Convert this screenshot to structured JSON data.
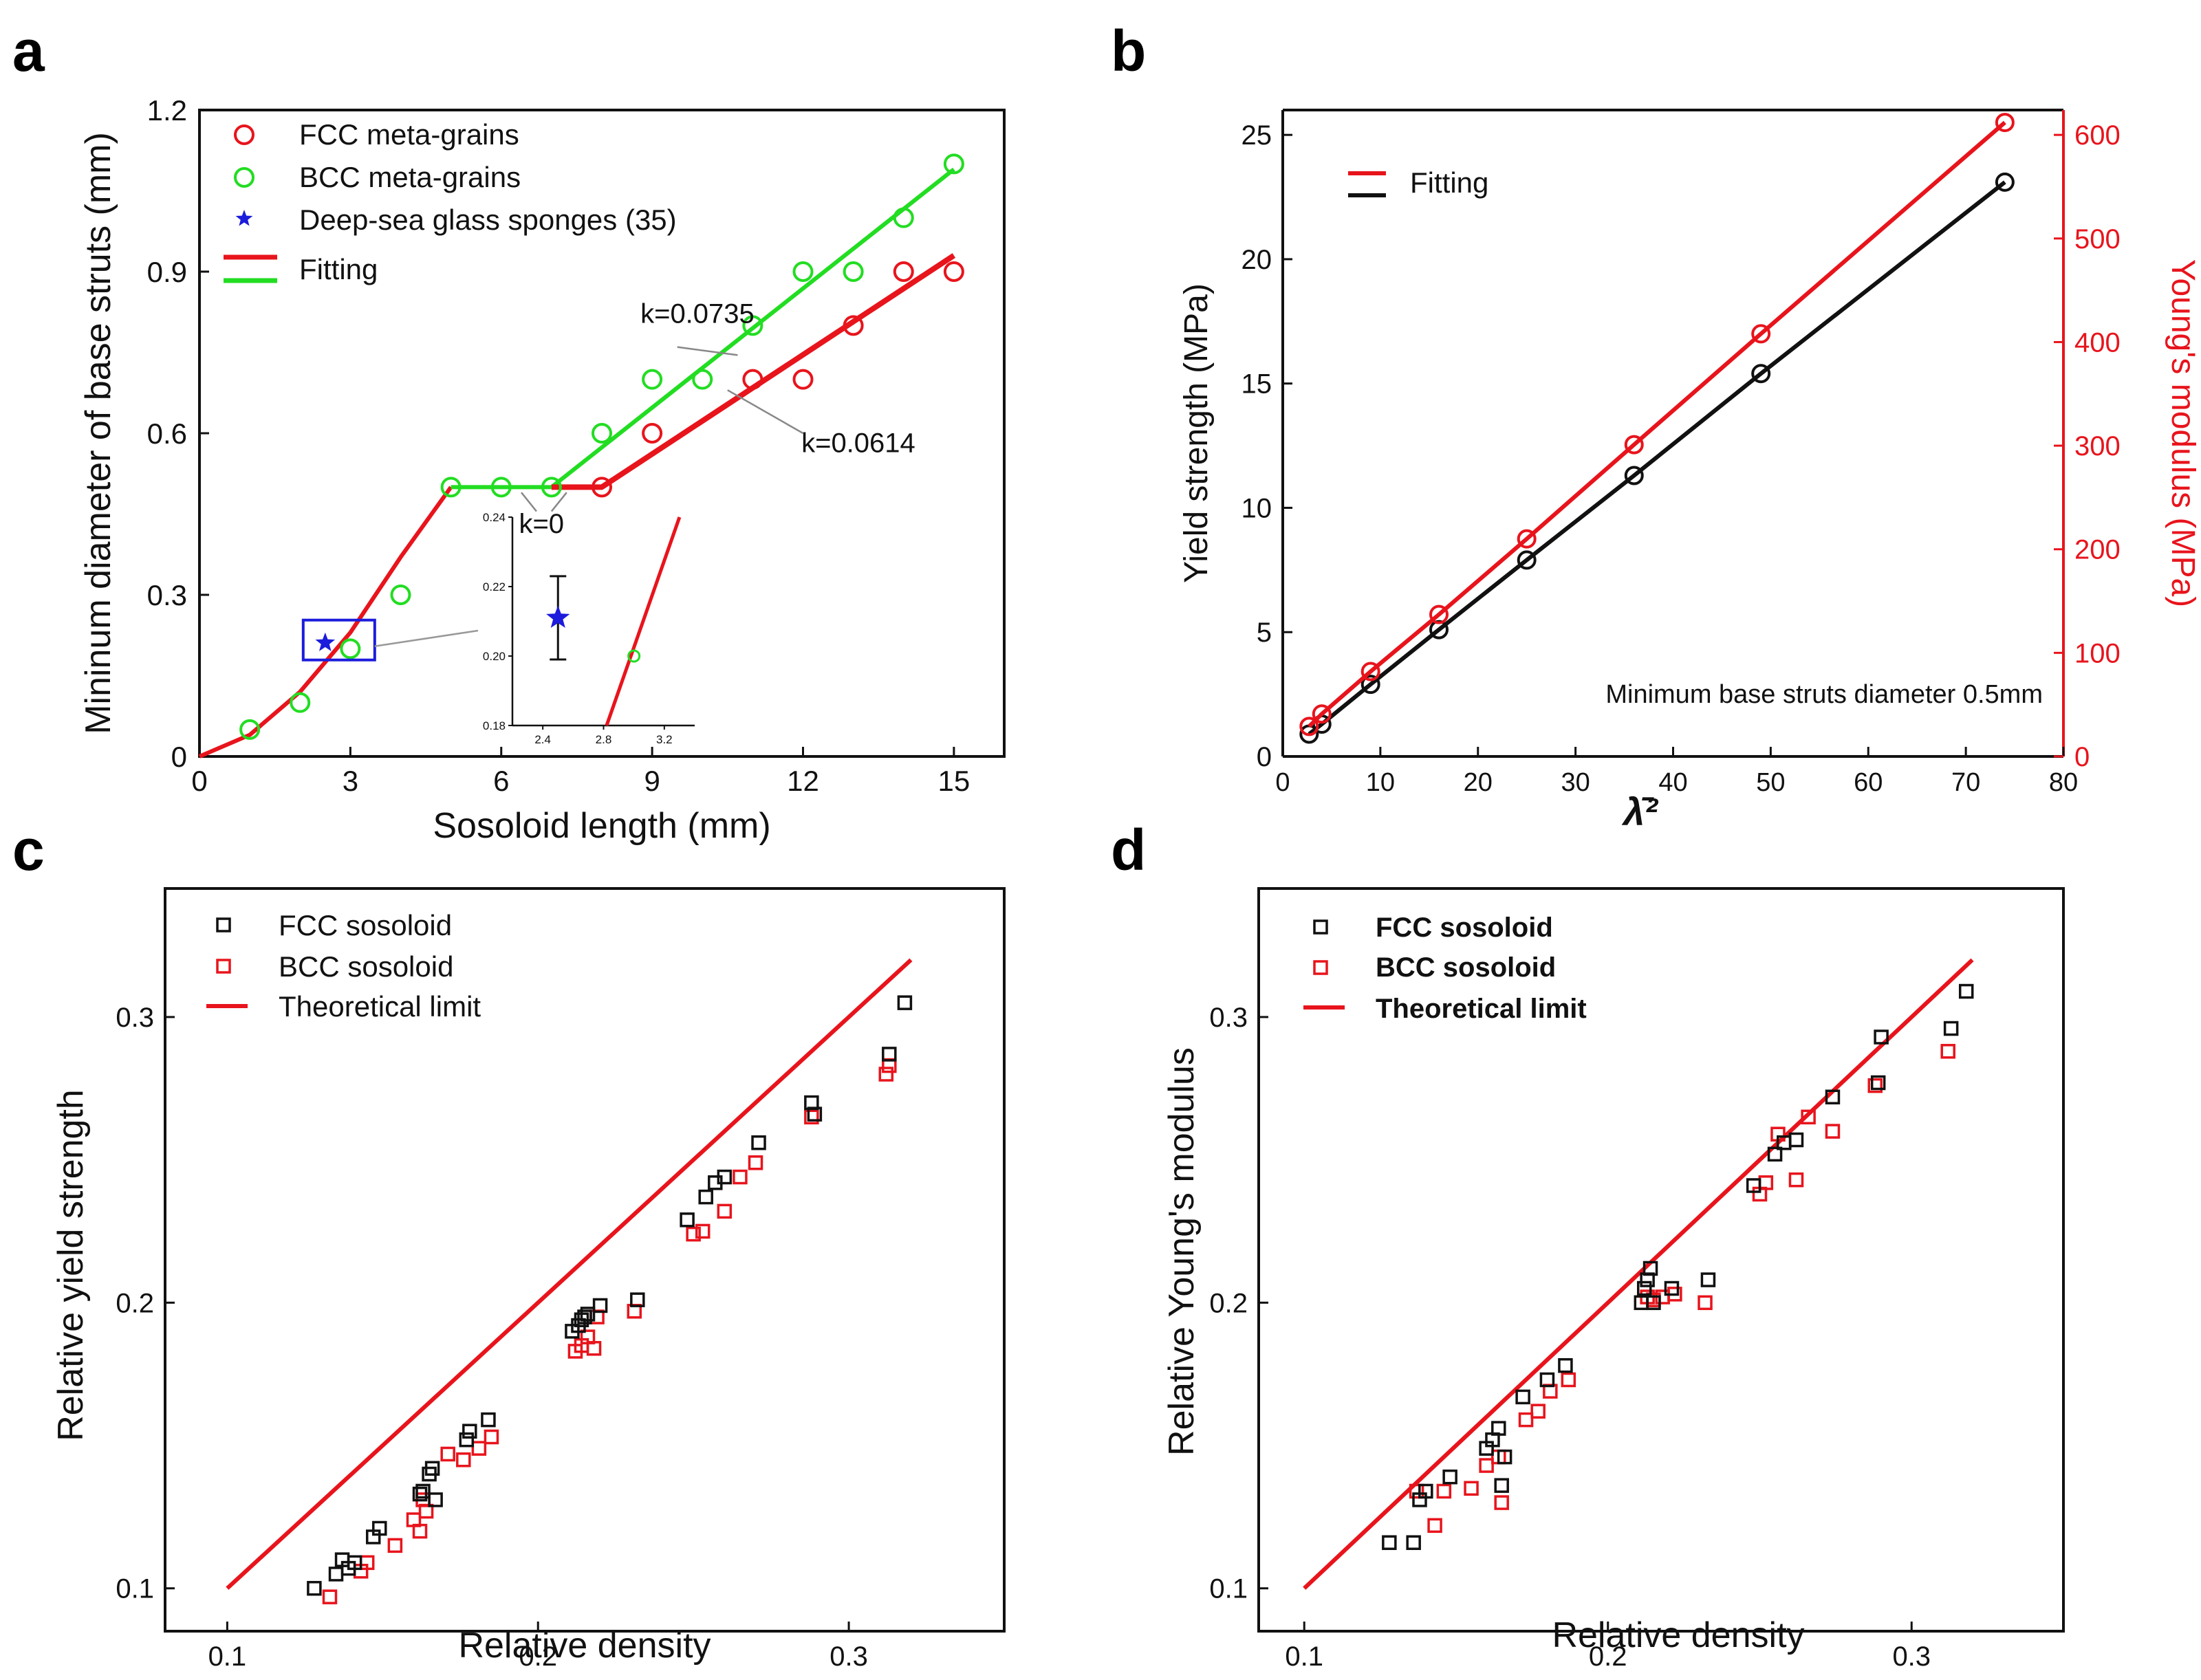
{
  "colors": {
    "fcc": "#e8141c",
    "bcc": "#22dd22",
    "blue": "#1c1cdc",
    "black": "#111111",
    "red": "#e8141c"
  },
  "chart_data": [
    {
      "panel": "a",
      "type": "scatter",
      "xlabel": "Sosoloid length (mm)",
      "ylabel": "Mininum diameter of base struts (mm)",
      "xlim": [
        0,
        16
      ],
      "ylim": [
        0,
        1.2
      ],
      "xticks": [
        0,
        3,
        6,
        9,
        12,
        15
      ],
      "yticks": [
        0,
        0.3,
        0.6,
        0.9,
        1.2
      ],
      "yticklabels": [
        "0",
        "0.3",
        "0.6",
        "0.9",
        "1.2"
      ],
      "legend": [
        "FCC meta-grains",
        "BCC meta-grains",
        "Deep-sea glass sponges (35)",
        "Fitting"
      ],
      "series": [
        {
          "name": "FCC meta-grains",
          "x": [
            8,
            9,
            11,
            12,
            13,
            14,
            15
          ],
          "y": [
            0.5,
            0.6,
            0.7,
            0.7,
            0.8,
            0.9,
            0.9
          ]
        },
        {
          "name": "BCC meta-grains",
          "x": [
            1,
            2,
            3,
            4,
            5,
            6,
            7,
            8,
            9,
            10,
            11,
            12,
            13,
            14,
            15
          ],
          "y": [
            0.05,
            0.1,
            0.2,
            0.3,
            0.5,
            0.5,
            0.5,
            0.6,
            0.7,
            0.7,
            0.8,
            0.9,
            0.9,
            1.0,
            1.1
          ]
        },
        {
          "name": "Deep-sea glass sponges (35)",
          "x": [
            2.5
          ],
          "y": [
            0.211
          ]
        }
      ],
      "fits": [
        {
          "name": "FCC fit",
          "x": [
            7,
            8,
            15
          ],
          "y": [
            0.5,
            0.5,
            0.93
          ]
        },
        {
          "name": "BCC fit",
          "x": [
            7,
            15
          ],
          "y": [
            0.5,
            1.09
          ]
        },
        {
          "name": "S-curve",
          "x": [
            0,
            1,
            2,
            3,
            4,
            5
          ],
          "y": [
            0,
            0.04,
            0.12,
            0.23,
            0.37,
            0.5
          ]
        },
        {
          "name": "plateau",
          "x": [
            5,
            7
          ],
          "y": [
            0.5,
            0.5
          ]
        }
      ],
      "annotations": [
        "k=0.0735",
        "k=0.0614",
        "k=0"
      ],
      "inset": {
        "xlim": [
          2.2,
          3.4
        ],
        "ylim": [
          0.18,
          0.24
        ],
        "xticks": [
          2.4,
          2.8,
          3.2
        ],
        "yticks": [
          0.18,
          0.2,
          0.22,
          0.24
        ],
        "yticklabels": [
          "0.18",
          "0.20",
          "0.22",
          "0.24"
        ],
        "star": {
          "x": 2.5,
          "y": 0.211,
          "err": 0.012
        },
        "bcc_point": {
          "x": 3.0,
          "y": 0.2
        },
        "line": {
          "x": [
            2.82,
            3.3
          ],
          "y": [
            0.18,
            0.24
          ]
        }
      }
    },
    {
      "panel": "b",
      "type": "line",
      "xlabel": "λ̄²",
      "ylabel": "Yield strength (MPa)",
      "ylabel_right": "Young's modulus (MPa)",
      "xlim": [
        0,
        80
      ],
      "ylim": [
        0,
        26
      ],
      "ylim_right": [
        0,
        624
      ],
      "xticks": [
        0,
        10,
        20,
        30,
        40,
        50,
        60,
        70,
        80
      ],
      "yticks": [
        0,
        5,
        10,
        15,
        20,
        25
      ],
      "yticks_right": [
        0,
        100,
        200,
        300,
        400,
        500,
        600
      ],
      "legend": [
        "Fitting"
      ],
      "annotation": "Minimum base struts diameter 0.5mm",
      "series": [
        {
          "name": "Yield strength",
          "x": [
            2.7,
            4,
            9,
            16,
            25,
            36,
            49,
            74
          ],
          "y": [
            0.9,
            1.3,
            2.9,
            5.1,
            7.9,
            11.3,
            15.4,
            23.1
          ]
        },
        {
          "name": "Young's modulus",
          "x": [
            2.7,
            4,
            9,
            16,
            25,
            36,
            49,
            74
          ],
          "y": [
            29,
            41,
            82,
            137,
            210,
            301,
            408,
            612
          ]
        }
      ]
    },
    {
      "panel": "c",
      "type": "scatter",
      "xlabel": "Relative density",
      "ylabel": "Relative yield strength",
      "xlim": [
        0.08,
        0.35
      ],
      "ylim": [
        0.085,
        0.345
      ],
      "xticks": [
        0.1,
        0.2,
        0.3
      ],
      "yticks": [
        0.1,
        0.2,
        0.3
      ],
      "legend": [
        "FCC sosoloid",
        "BCC sosoloid",
        "Theoretical limit"
      ],
      "series": [
        {
          "name": "FCC sosoloid",
          "x": [
            0.128,
            0.135,
            0.137,
            0.139,
            0.141,
            0.147,
            0.149,
            0.162,
            0.163,
            0.165,
            0.166,
            0.167,
            0.177,
            0.178,
            0.184,
            0.211,
            0.213,
            0.214,
            0.215,
            0.216,
            0.22,
            0.232,
            0.248,
            0.254,
            0.257,
            0.26,
            0.271,
            0.288,
            0.289,
            0.313,
            0.318
          ],
          "y": [
            0.1,
            0.105,
            0.11,
            0.107,
            0.109,
            0.118,
            0.121,
            0.133,
            0.134,
            0.14,
            0.142,
            0.131,
            0.152,
            0.155,
            0.159,
            0.19,
            0.192,
            0.194,
            0.195,
            0.196,
            0.199,
            0.201,
            0.229,
            0.237,
            0.242,
            0.244,
            0.256,
            0.27,
            0.266,
            0.287,
            0.305
          ]
        },
        {
          "name": "BCC sosoloid",
          "x": [
            0.133,
            0.143,
            0.145,
            0.154,
            0.16,
            0.162,
            0.163,
            0.164,
            0.171,
            0.176,
            0.181,
            0.185,
            0.212,
            0.214,
            0.216,
            0.218,
            0.219,
            0.231,
            0.25,
            0.253,
            0.26,
            0.265,
            0.27,
            0.288,
            0.312,
            0.313
          ],
          "y": [
            0.097,
            0.106,
            0.109,
            0.115,
            0.124,
            0.12,
            0.131,
            0.127,
            0.147,
            0.145,
            0.149,
            0.153,
            0.183,
            0.185,
            0.188,
            0.184,
            0.195,
            0.197,
            0.224,
            0.225,
            0.232,
            0.244,
            0.249,
            0.265,
            0.28,
            0.283
          ]
        }
      ],
      "theoretical_limit": {
        "x": [
          0.1,
          0.32
        ],
        "y": [
          0.1,
          0.32
        ]
      }
    },
    {
      "panel": "d",
      "type": "scatter",
      "xlabel": "Relative density",
      "ylabel": "Relative Young's modulus",
      "xlim": [
        0.085,
        0.35
      ],
      "ylim": [
        0.085,
        0.345
      ],
      "xticks": [
        0.1,
        0.2,
        0.3
      ],
      "yticks": [
        0.1,
        0.2,
        0.3
      ],
      "legend": [
        "FCC sosoloid",
        "BCC sosoloid",
        "Theoretical limit"
      ],
      "series": [
        {
          "name": "FCC sosoloid",
          "x": [
            0.128,
            0.136,
            0.138,
            0.14,
            0.148,
            0.16,
            0.162,
            0.164,
            0.165,
            0.166,
            0.172,
            0.18,
            0.186,
            0.211,
            0.212,
            0.213,
            0.214,
            0.215,
            0.221,
            0.233,
            0.248,
            0.255,
            0.258,
            0.262,
            0.274,
            0.289,
            0.29,
            0.313,
            0.318
          ],
          "y": [
            0.116,
            0.116,
            0.131,
            0.134,
            0.139,
            0.149,
            0.152,
            0.156,
            0.136,
            0.146,
            0.167,
            0.173,
            0.178,
            0.2,
            0.205,
            0.208,
            0.212,
            0.2,
            0.205,
            0.208,
            0.241,
            0.252,
            0.256,
            0.257,
            0.272,
            0.277,
            0.293,
            0.296,
            0.309
          ]
        },
        {
          "name": "BCC sosoloid",
          "x": [
            0.137,
            0.143,
            0.146,
            0.155,
            0.16,
            0.164,
            0.165,
            0.173,
            0.177,
            0.181,
            0.187,
            0.213,
            0.215,
            0.218,
            0.222,
            0.232,
            0.25,
            0.252,
            0.256,
            0.262,
            0.266,
            0.274,
            0.288,
            0.312
          ],
          "y": [
            0.134,
            0.122,
            0.134,
            0.135,
            0.143,
            0.146,
            0.13,
            0.159,
            0.162,
            0.169,
            0.173,
            0.202,
            0.201,
            0.202,
            0.203,
            0.2,
            0.238,
            0.242,
            0.259,
            0.243,
            0.265,
            0.26,
            0.276,
            0.288
          ]
        }
      ],
      "theoretical_limit": {
        "x": [
          0.1,
          0.32
        ],
        "y": [
          0.1,
          0.32
        ]
      }
    }
  ]
}
